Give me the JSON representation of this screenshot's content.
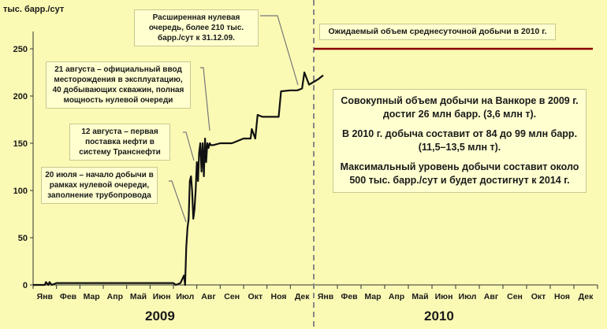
{
  "chart_data": {
    "type": "line",
    "ylabel": "тыс. барр./сут",
    "ylim": [
      0,
      270
    ],
    "yticks": [
      0,
      50,
      100,
      150,
      200,
      250
    ],
    "months_2009": [
      "Янв",
      "Фев",
      "Мар",
      "Апр",
      "Май",
      "Июн",
      "Июл",
      "Авг",
      "Сен",
      "Окт",
      "Ноя",
      "Дек"
    ],
    "months_2010": [
      "Янв",
      "Фев",
      "Мар",
      "Апр",
      "Май",
      "Июн",
      "Июл",
      "Авг",
      "Сен",
      "Окт",
      "Ноя",
      "Дек"
    ],
    "years": [
      "2009",
      "2010"
    ],
    "series": [
      {
        "values_x_months": [
          0,
          0.5,
          0.55,
          0.65,
          0.7,
          0.8,
          1,
          2,
          3,
          4,
          5,
          6,
          6.1,
          6.3,
          6.45,
          6.5,
          6.55,
          6.6,
          6.65,
          6.7,
          6.75,
          6.8,
          6.85,
          6.9,
          6.95,
          7.0,
          7.05,
          7.1,
          7.15,
          7.2,
          7.25,
          7.3,
          7.35,
          7.4,
          7.45,
          7.5,
          7.55,
          7.6,
          7.7,
          8,
          8.5,
          9,
          9.3,
          9.35,
          9.5,
          9.6,
          9.8,
          10,
          10.5,
          10.6,
          11,
          11.3,
          11.5,
          11.6,
          11.8,
          12,
          12.2,
          12.4
        ],
        "values_y": [
          0,
          0,
          3,
          0,
          3,
          0,
          2,
          2,
          2,
          2,
          2,
          2,
          0,
          2,
          10,
          0,
          40,
          60,
          70,
          110,
          115,
          100,
          70,
          80,
          100,
          130,
          110,
          140,
          150,
          120,
          150,
          115,
          155,
          130,
          150,
          145,
          150,
          148,
          148,
          150,
          150,
          155,
          155,
          165,
          155,
          180,
          178,
          178,
          178,
          205,
          206,
          206,
          208,
          225,
          212,
          215,
          218,
          222
        ]
      }
    ],
    "reference_line": {
      "value": 250,
      "label": "Ожидаемый объем среднесуточной добычи в 2010 г.",
      "color": "#8b0000"
    },
    "line_color": "#111111",
    "annotations": [
      {
        "text": "Расширенная нулевая очередь, более 210 тыс. барр./сут к 31.12.09."
      },
      {
        "text": "21 августа – официальный ввод месторождения в эксплуатацию, 40 добывающих скважин, полная мощность нулевой очереди"
      },
      {
        "text": "12 августа – первая поставка нефти в систему Транснефти"
      },
      {
        "text": "20 июля – начало добычи в рамках нулевой очереди, заполнение трубопровода"
      }
    ],
    "info_box": [
      "Совокупный объем добычи на Ванкоре в 2009 г. достиг 26 млн барр. (3,6 млн т).",
      "В 2010 г. добыча составит от 84 до 99 млн барр. (11,5–13,5 млн т).",
      "Максимальный уровень добычи составит около 500 тыс. барр./сут и будет достигнут к 2014 г."
    ]
  }
}
